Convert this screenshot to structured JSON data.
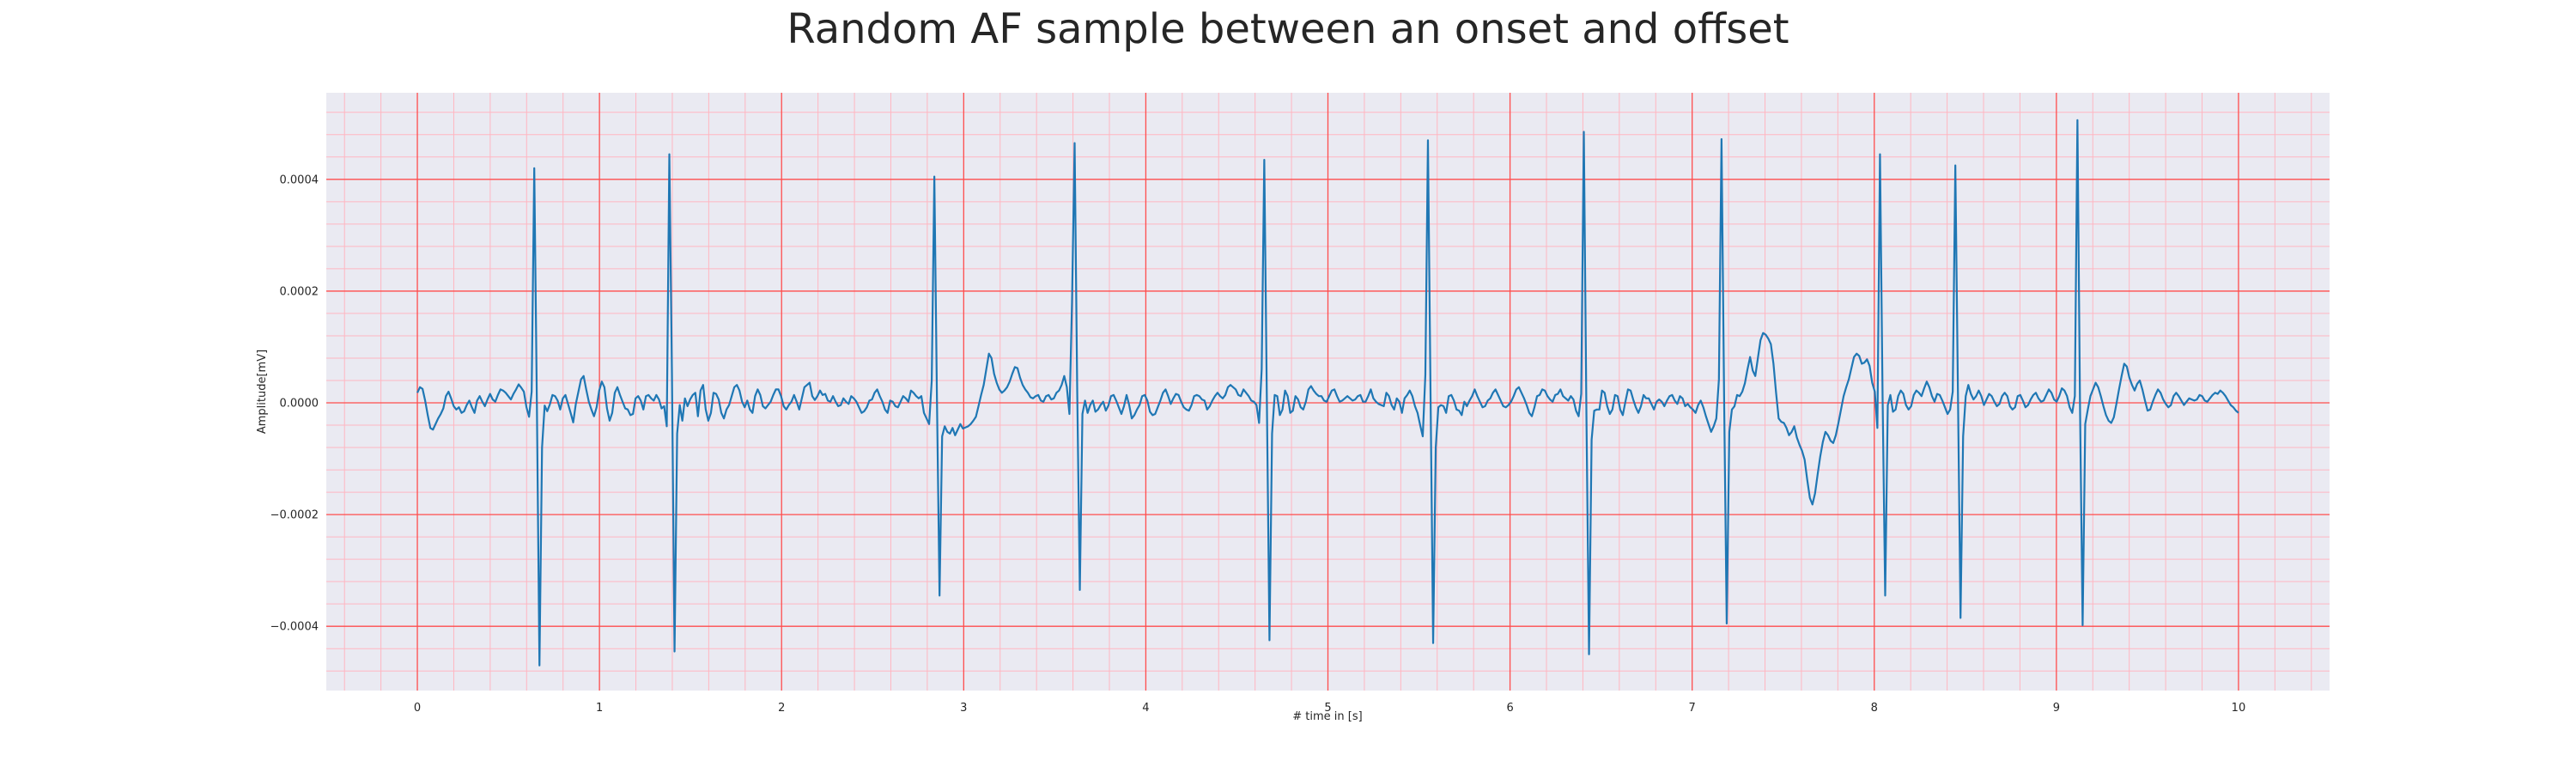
{
  "chart_data": {
    "type": "line",
    "title": "Random AF sample between an onset and offset",
    "xlabel": "# time in [s]",
    "ylabel": "Amplitude[mV]",
    "xlim": [
      -0.5,
      10.5
    ],
    "ylim": [
      -0.000515,
      0.000555
    ],
    "xticks": [
      0,
      1,
      2,
      3,
      4,
      5,
      6,
      7,
      8,
      9,
      10
    ],
    "xtick_labels": [
      "0",
      "1",
      "2",
      "3",
      "4",
      "5",
      "6",
      "7",
      "8",
      "9",
      "10"
    ],
    "yticks": [
      -0.0004,
      -0.0002,
      0.0,
      0.0002,
      0.0004
    ],
    "ytick_labels": [
      "−0.0004",
      "−0.0002",
      "0.0000",
      "0.0002",
      "0.0004"
    ],
    "grid": true,
    "minor_grid": true,
    "colors": {
      "line": "#1f77b4",
      "background": "#eaeaf2",
      "major_grid": "#ff4d4d",
      "minor_grid": "#ffb6c1"
    },
    "sample_rate_hz": 100,
    "series": [
      {
        "values": [
          1.8e-05,
          2.8e-05,
          2.5e-05,
          4e-06,
          -2.2e-05,
          -4.5e-05,
          -4.8e-05,
          -3.8e-05,
          -2.8e-05,
          -2e-05,
          -1e-05,
          1.2e-05,
          2e-05,
          8e-06,
          -6e-06,
          -1.2e-05,
          -8e-06,
          -1.8e-05,
          -1.5e-05,
          -4e-06,
          4e-06,
          -8e-06,
          -1.8e-05,
          4e-06,
          1.2e-05,
          2e-06,
          -6e-06,
          6e-06,
          1.6e-05,
          6e-06,
          2e-06,
          1.4e-05,
          2.4e-05,
          2.2e-05,
          1.8e-05,
          1.2e-05,
          6e-06,
          1.6e-05,
          2.4e-05,
          3.3e-05,
          2.7e-05,
          2e-05,
          -8e-06,
          -2.5e-05,
          2e-05,
          0.00042,
          2e-06,
          -0.00047,
          -8e-05,
          -5e-06,
          -1.5e-05,
          -3e-06,
          1.4e-05,
          1.2e-05,
          4e-06,
          -1.2e-05,
          8e-06,
          1.4e-05,
          -2e-06,
          -1.8e-05,
          -3.5e-05,
          -2e-06,
          2e-05,
          4.2e-05,
          4.8e-05,
          2.4e-05,
          2e-06,
          -1.2e-05,
          -2.4e-05,
          -8e-06,
          2.2e-05,
          3.8e-05,
          2.8e-05,
          -1e-05,
          -3.2e-05,
          -1.8e-05,
          1.8e-05,
          2.8e-05,
          1.4e-05,
          2e-06,
          -1e-05,
          -1.2e-05,
          -2.2e-05,
          -2e-05,
          8e-06,
          1.2e-05,
          4e-06,
          -1.2e-05,
          1.2e-05,
          1.4e-05,
          8e-06,
          4e-06,
          1.4e-05,
          6e-06,
          -1e-05,
          -6e-06,
          -4.2e-05,
          0.000445,
          5.2e-05,
          -0.000445,
          -5.5e-05,
          -4e-06,
          -3.2e-05,
          8e-06,
          -6e-06,
          6e-06,
          1.4e-05,
          1.8e-05,
          -2.4e-05,
          2.2e-05,
          3.2e-05,
          -1.2e-05,
          -3.2e-05,
          -1.8e-05,
          1.8e-05,
          1.6e-05,
          6e-06,
          -1.8e-05,
          -2.8e-05,
          -1.2e-05,
          -4e-06,
          1.2e-05,
          2.8e-05,
          3.2e-05,
          2.2e-05,
          2e-06,
          -8e-06,
          4e-06,
          -1.2e-05,
          -1.8e-05,
          1.2e-05,
          2.4e-05,
          1.4e-05,
          -6e-06,
          -1e-05,
          -4e-06,
          2e-06,
          1.4e-05,
          2.4e-05,
          2.4e-05,
          1.2e-05,
          -6e-06,
          -1.2e-05,
          -4e-06,
          2e-06,
          1.4e-05,
          2e-06,
          -1.2e-05,
          8e-06,
          2.8e-05,
          3.2e-05,
          3.6e-05,
          1.2e-05,
          5e-06,
          1.2e-05,
          2.2e-05,
          1.4e-05,
          1.6e-05,
          4e-06,
          2e-06,
          1.2e-05,
          2e-06,
          -6e-06,
          -4e-06,
          8e-06,
          2e-06,
          -2e-06,
          1.2e-05,
          8e-06,
          2e-06,
          -8e-06,
          -1.8e-05,
          -1.5e-05,
          -8e-06,
          4e-06,
          6e-06,
          1.8e-05,
          2.4e-05,
          1.2e-05,
          2e-06,
          -1.2e-05,
          -1.8e-05,
          4e-06,
          2e-06,
          -6e-06,
          -8e-06,
          2e-06,
          1.2e-05,
          8e-06,
          2e-06,
          2.2e-05,
          1.8e-05,
          1.2e-05,
          8e-06,
          1.2e-05,
          -1.8e-05,
          -2.8e-05,
          -3.8e-05,
          4e-05,
          0.000405,
          8e-06,
          -0.000345,
          -6e-05,
          -4.2e-05,
          -5.2e-05,
          -5.5e-05,
          -4.5e-05,
          -5.8e-05,
          -4.8e-05,
          -3.8e-05,
          -4.6e-05,
          -4.4e-05,
          -4.2e-05,
          -3.8e-05,
          -3.2e-05,
          -2.5e-05,
          -6e-06,
          1.4e-05,
          3.2e-05,
          6e-05,
          8.8e-05,
          8e-05,
          5.2e-05,
          3.6e-05,
          2.4e-05,
          1.8e-05,
          2.2e-05,
          2.8e-05,
          3.8e-05,
          5.2e-05,
          6.4e-05,
          6.2e-05,
          4.5e-05,
          3.2e-05,
          2.4e-05,
          1.8e-05,
          1e-05,
          8e-06,
          1.2e-05,
          1.4e-05,
          4e-06,
          2e-06,
          1.2e-05,
          1.4e-05,
          6e-06,
          8e-06,
          1.8e-05,
          2.2e-05,
          3.2e-05,
          4.8e-05,
          2.8e-05,
          -2e-05,
          0.00018,
          0.000465,
          2e-05,
          -0.000335,
          -2e-05,
          4e-06,
          -1.8e-05,
          -4e-06,
          4e-06,
          -1.6e-05,
          -1.2e-05,
          -4e-06,
          2e-06,
          -1.4e-05,
          -5e-06,
          1.2e-05,
          1.4e-05,
          4e-06,
          -8e-06,
          -2e-05,
          -6e-06,
          1.4e-05,
          -4e-06,
          -2.8e-05,
          -2.2e-05,
          -1.2e-05,
          -4e-06,
          1.2e-05,
          1.4e-05,
          4e-06,
          -1.6e-05,
          -2.2e-05,
          -2e-05,
          -8e-06,
          4e-06,
          1.8e-05,
          2.4e-05,
          1.2e-05,
          -2e-06,
          8e-06,
          1.6e-05,
          1.4e-05,
          2e-06,
          -8e-06,
          -1.2e-05,
          -1.4e-05,
          -4e-06,
          1.2e-05,
          1.4e-05,
          1.2e-05,
          6e-06,
          4e-06,
          -1.2e-05,
          -6e-06,
          4e-06,
          1.2e-05,
          1.8e-05,
          1.2e-05,
          8e-06,
          1.4e-05,
          2.8e-05,
          3.2e-05,
          2.8e-05,
          2.4e-05,
          1.4e-05,
          1.2e-05,
          2.4e-05,
          1.8e-05,
          1.2e-05,
          4e-06,
          2e-06,
          -4e-06,
          -3.6e-05,
          6e-05,
          0.000435,
          2e-06,
          -0.000425,
          -5.5e-05,
          1.4e-05,
          1.2e-05,
          -2.2e-05,
          -1.2e-05,
          2.2e-05,
          1.2e-05,
          -1.8e-05,
          -1.4e-05,
          1.2e-05,
          6e-06,
          -8e-06,
          -1.2e-05,
          2e-06,
          2.4e-05,
          3e-05,
          2.2e-05,
          1.6e-05,
          1.2e-05,
          1.2e-05,
          4e-06,
          2e-06,
          1.2e-05,
          2.2e-05,
          2.4e-05,
          1.2e-05,
          2e-06,
          4e-06,
          8e-06,
          1.2e-05,
          8e-06,
          4e-06,
          6e-06,
          1.2e-05,
          1.4e-05,
          2e-06,
          2e-06,
          1.2e-05,
          2.4e-05,
          8e-06,
          2e-06,
          -2e-06,
          -4e-06,
          -6e-06,
          1.8e-05,
          1.2e-05,
          -4e-06,
          -1.2e-05,
          8e-06,
          2e-06,
          -1.8e-05,
          8e-06,
          1.4e-05,
          2.2e-05,
          1.2e-05,
          -6e-06,
          -1.8e-05,
          -4e-05,
          -6e-05,
          5e-05,
          0.00047,
          1.5e-05,
          -0.00043,
          -8e-05,
          -8e-06,
          -4e-06,
          -6e-06,
          -1.8e-05,
          1.2e-05,
          1.4e-05,
          4e-06,
          -1.2e-05,
          -1.4e-05,
          -2.2e-05,
          2e-06,
          -6e-06,
          4e-06,
          1.2e-05,
          2.4e-05,
          1.2e-05,
          2e-06,
          -8e-06,
          -6e-06,
          4e-06,
          8e-06,
          1.8e-05,
          2.4e-05,
          1.4e-05,
          4e-06,
          -6e-06,
          -8e-06,
          -4e-06,
          2e-06,
          1.2e-05,
          2.4e-05,
          2.8e-05,
          1.8e-05,
          8e-06,
          -4e-06,
          -1.8e-05,
          -2.4e-05,
          -8e-06,
          1.2e-05,
          1.4e-05,
          2.4e-05,
          2.2e-05,
          1.2e-05,
          6e-06,
          2e-06,
          1.4e-05,
          1.6e-05,
          2.4e-05,
          1.2e-05,
          8e-06,
          4e-06,
          1.2e-05,
          6e-06,
          -1.4e-05,
          -2.4e-05,
          1.6e-05,
          0.000485,
          -2e-05,
          -0.00045,
          -6.6e-05,
          -1.4e-05,
          -1.2e-05,
          -1.2e-05,
          2.2e-05,
          1.8e-05,
          -6e-06,
          -2e-05,
          -1.2e-05,
          1.4e-05,
          1.2e-05,
          -1.2e-05,
          -2.2e-05,
          2e-06,
          2.4e-05,
          2.2e-05,
          6e-06,
          -8e-06,
          -1.8e-05,
          -6e-06,
          1.4e-05,
          8e-06,
          8e-06,
          -2e-06,
          -1.2e-05,
          2e-06,
          6e-06,
          2e-06,
          -6e-06,
          4e-06,
          1.2e-05,
          1.4e-05,
          4e-06,
          -2e-06,
          1.2e-05,
          8e-06,
          -6e-06,
          -2e-06,
          -8e-06,
          -1.2e-05,
          -1.8e-05,
          -4e-06,
          4e-06,
          -8e-06,
          -2.4e-05,
          -3.8e-05,
          -5.2e-05,
          -4.2e-05,
          -2.8e-05,
          4.2e-05,
          0.000472,
          8e-06,
          -0.000395,
          -5.2e-05,
          -1.2e-05,
          -6e-06,
          1.4e-05,
          1.2e-05,
          2e-05,
          3.5e-05,
          6e-05,
          8.2e-05,
          5.8e-05,
          4.8e-05,
          8e-05,
          0.000112,
          0.000125,
          0.000122,
          0.000115,
          0.000105,
          7e-05,
          1.8e-05,
          -2.8e-05,
          -3.4e-05,
          -3.6e-05,
          -4.5e-05,
          -5.8e-05,
          -5.2e-05,
          -4.2e-05,
          -6.2e-05,
          -7.5e-05,
          -8.6e-05,
          -0.000102,
          -0.000138,
          -0.00017,
          -0.000182,
          -0.000162,
          -0.000128,
          -9.6e-05,
          -7e-05,
          -5.2e-05,
          -5.8e-05,
          -6.8e-05,
          -7.2e-05,
          -5.8e-05,
          -3.6e-05,
          -1.2e-05,
          1.2e-05,
          2.8e-05,
          4.2e-05,
          6.2e-05,
          8.2e-05,
          8.8e-05,
          8.4e-05,
          7e-05,
          7.2e-05,
          7.8e-05,
          6.6e-05,
          3.6e-05,
          2e-05,
          -4.5e-05,
          0.000445,
          1.2e-05,
          -0.000345,
          -4e-06,
          1.4e-05,
          -1.6e-05,
          -1.2e-05,
          1.2e-05,
          2.2e-05,
          1.6e-05,
          -4e-06,
          -1.2e-05,
          -6e-06,
          1.4e-05,
          2.2e-05,
          1.8e-05,
          1.2e-05,
          2.6e-05,
          3.8e-05,
          2.8e-05,
          1.2e-05,
          2e-06,
          1.6e-05,
          1.4e-05,
          4e-06,
          -8e-06,
          -2e-05,
          -1.2e-05,
          2e-05,
          0.000425,
          2e-05,
          -0.000385,
          -6e-05,
          1.2e-05,
          3.2e-05,
          1.6e-05,
          6e-06,
          1.2e-05,
          2.2e-05,
          1.2e-05,
          -4e-06,
          6e-06,
          1.6e-05,
          1.2e-05,
          2e-06,
          -6e-06,
          -2e-06,
          1.2e-05,
          1.8e-05,
          1.2e-05,
          -6e-06,
          -1.2e-05,
          -8e-06,
          1.2e-05,
          1.4e-05,
          4e-06,
          -8e-06,
          -4e-06,
          6e-06,
          1.4e-05,
          1.8e-05,
          8e-06,
          2e-06,
          4e-06,
          1.4e-05,
          2.4e-05,
          1.8e-05,
          6e-06,
          2e-06,
          1.2e-05,
          2.6e-05,
          2.2e-05,
          1.2e-05,
          -8e-06,
          -1.8e-05,
          1.2e-05,
          0.000506,
          -1e-05,
          -0.000398,
          -3.8e-05,
          -1.2e-05,
          1.2e-05,
          2.4e-05,
          3.6e-05,
          2.8e-05,
          1.2e-05,
          -6e-06,
          -2.2e-05,
          -3.2e-05,
          -3.6e-05,
          -2.6e-05,
          -2e-06,
          2.4e-05,
          4.8e-05,
          7e-05,
          6.5e-05,
          4.5e-05,
          3.2e-05,
          2.2e-05,
          3.4e-05,
          4e-05,
          2.4e-05,
          4e-06,
          -1.4e-05,
          -1.2e-05,
          2e-06,
          1.4e-05,
          2.4e-05,
          1.8e-05,
          6e-06,
          -2e-06,
          -8e-06,
          -4e-06,
          1.2e-05,
          1.8e-05,
          1.2e-05,
          4e-06,
          -4e-06,
          2e-06,
          8e-06,
          6e-06,
          4e-06,
          6e-06,
          1.4e-05,
          1.2e-05,
          4e-06,
          2e-06,
          8e-06,
          1.4e-05,
          1.8e-05,
          1.6e-05,
          2.2e-05,
          1.8e-05,
          1.2e-05,
          4e-06,
          -4e-06,
          -8e-06,
          -1.4e-05,
          -1.8e-05
        ]
      }
    ]
  }
}
